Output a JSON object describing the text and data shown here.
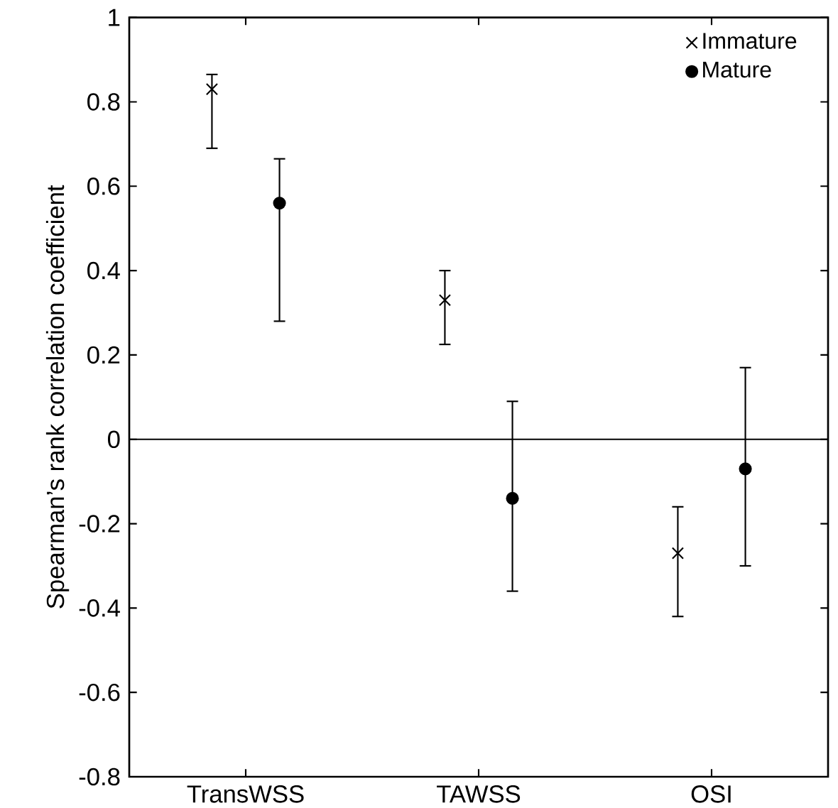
{
  "chart_data": {
    "type": "scatter",
    "ylabel": "Spearman’s rank correlation coefficient",
    "categories": [
      "TransWSS",
      "TAWSS",
      "OSI"
    ],
    "series": [
      {
        "name": "Immature",
        "color": "#000000",
        "marker": "cross",
        "values": [
          0.83,
          0.33,
          -0.27
        ],
        "errors": [
          [
            0.69,
            0.865
          ],
          [
            0.225,
            0.4
          ],
          [
            -0.42,
            -0.16
          ]
        ]
      },
      {
        "name": "Mature",
        "color": "#000000",
        "marker": "circle",
        "values": [
          0.56,
          -0.14,
          -0.07
        ],
        "errors": [
          [
            0.28,
            0.665
          ],
          [
            -0.36,
            0.09
          ],
          [
            -0.3,
            0.17
          ]
        ]
      }
    ],
    "ylim": [
      -0.8,
      1
    ],
    "yticks": [
      -0.8,
      -0.6,
      -0.4,
      -0.2,
      0,
      0.2,
      0.4,
      0.6,
      0.8,
      1
    ],
    "ref_lines": [
      {
        "axis": "y",
        "value": 0,
        "color": "#000000"
      }
    ],
    "grid": false,
    "legend": "top right"
  }
}
